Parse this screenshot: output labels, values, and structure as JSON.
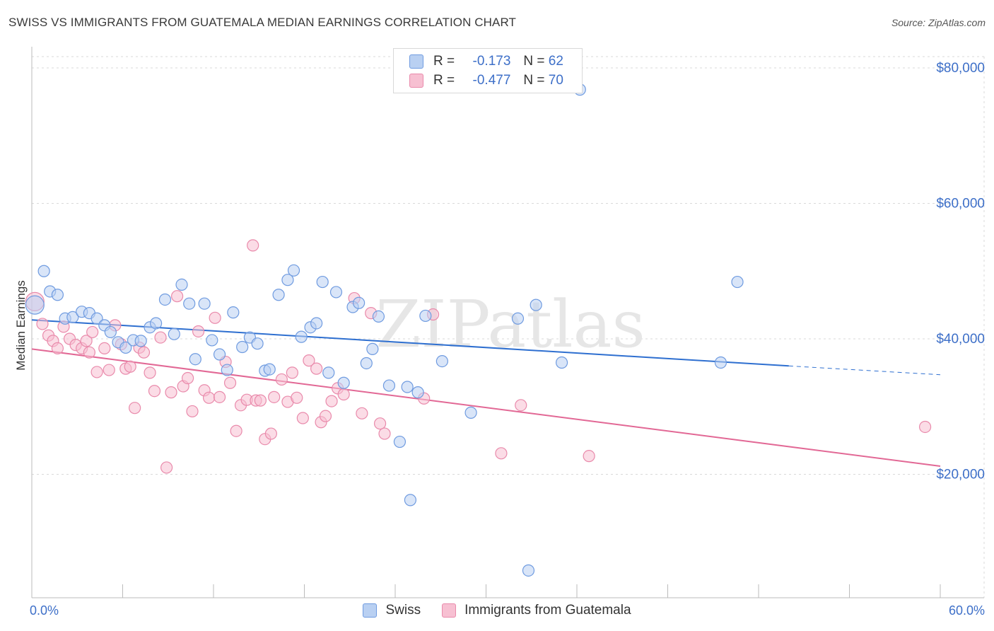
{
  "header": {
    "title": "SWISS VS IMMIGRANTS FROM GUATEMALA MEDIAN EARNINGS CORRELATION CHART",
    "source": "Source: ZipAtlas.com"
  },
  "legend": {
    "swiss": {
      "r_label": "R =",
      "r_value": "-0.173",
      "n_label": "N =",
      "n_value": "62"
    },
    "guatemala": {
      "r_label": "R =",
      "r_value": "-0.477",
      "n_label": "N =",
      "n_value": "70"
    }
  },
  "bottom_legend": {
    "swiss": "Swiss",
    "guatemala": "Immigrants from Guatemala"
  },
  "colors": {
    "swiss_fill": "#b9d0f2",
    "swiss_stroke": "#6f9be0",
    "swiss_line": "#2e6fd0",
    "guat_fill": "#f7c0d2",
    "guat_stroke": "#e98aab",
    "guat_line": "#e26895",
    "axis_label": "#3d6fc8",
    "grid": "#d9d9d9"
  },
  "chart_data": {
    "type": "scatter",
    "title": "SWISS VS IMMIGRANTS FROM GUATEMALA MEDIAN EARNINGS CORRELATION CHART",
    "xlabel": "",
    "ylabel": "Median Earnings",
    "xlim": [
      0,
      60
    ],
    "ylim": [
      0,
      80000
    ],
    "x_tick_labels": [
      "0.0%",
      "60.0%"
    ],
    "y_ticks": [
      20000,
      40000,
      60000,
      80000
    ],
    "y_tick_labels": [
      "$20,000",
      "$40,000",
      "$60,000",
      "$80,000"
    ],
    "grid": true,
    "watermark": "ZIPatlas",
    "series": [
      {
        "name": "Swiss",
        "r": -0.173,
        "n": 62,
        "trend": {
          "x0": 0,
          "y0": 42800,
          "x1": 50,
          "y1": 36000,
          "dash_x1": 60,
          "dash_y1": 34700
        },
        "points": [
          [
            0.2,
            45000
          ],
          [
            0.8,
            50000
          ],
          [
            1.2,
            47000
          ],
          [
            1.7,
            46500
          ],
          [
            2.2,
            43000
          ],
          [
            2.7,
            43200
          ],
          [
            3.3,
            44000
          ],
          [
            3.8,
            43800
          ],
          [
            4.3,
            43000
          ],
          [
            4.8,
            42000
          ],
          [
            5.2,
            41000
          ],
          [
            5.7,
            39500
          ],
          [
            6.2,
            38700
          ],
          [
            6.7,
            39800
          ],
          [
            7.2,
            39700
          ],
          [
            7.8,
            41700
          ],
          [
            8.2,
            42300
          ],
          [
            8.8,
            45800
          ],
          [
            9.4,
            40700
          ],
          [
            9.9,
            48000
          ],
          [
            10.4,
            45200
          ],
          [
            10.8,
            37000
          ],
          [
            11.4,
            45200
          ],
          [
            11.9,
            39800
          ],
          [
            12.4,
            37700
          ],
          [
            12.9,
            35400
          ],
          [
            13.3,
            43900
          ],
          [
            13.9,
            38800
          ],
          [
            14.4,
            40200
          ],
          [
            14.9,
            39300
          ],
          [
            15.4,
            35300
          ],
          [
            15.7,
            35500
          ],
          [
            16.3,
            46500
          ],
          [
            16.9,
            48700
          ],
          [
            17.3,
            50100
          ],
          [
            17.8,
            40300
          ],
          [
            18.4,
            41700
          ],
          [
            18.8,
            42300
          ],
          [
            19.2,
            48400
          ],
          [
            19.6,
            35000
          ],
          [
            20.1,
            46900
          ],
          [
            20.6,
            33500
          ],
          [
            21.2,
            44700
          ],
          [
            21.6,
            45300
          ],
          [
            22.1,
            36400
          ],
          [
            22.5,
            38500
          ],
          [
            22.9,
            43300
          ],
          [
            23.6,
            33100
          ],
          [
            24.3,
            24800
          ],
          [
            24.8,
            32900
          ],
          [
            25.0,
            16200
          ],
          [
            25.5,
            32100
          ],
          [
            26.0,
            43400
          ],
          [
            27.1,
            36700
          ],
          [
            29.0,
            29100
          ],
          [
            32.1,
            43000
          ],
          [
            32.8,
            5800
          ],
          [
            33.3,
            45000
          ],
          [
            35.0,
            36500
          ],
          [
            36.2,
            76800
          ],
          [
            45.5,
            36500
          ],
          [
            46.6,
            48400
          ]
        ]
      },
      {
        "name": "Immigrants from Guatemala",
        "r": -0.477,
        "n": 70,
        "trend": {
          "x0": 0,
          "y0": 38500,
          "x1": 60,
          "y1": 21200
        },
        "points": [
          [
            0.2,
            45500
          ],
          [
            0.7,
            42200
          ],
          [
            1.1,
            40500
          ],
          [
            1.4,
            39700
          ],
          [
            1.7,
            38600
          ],
          [
            2.1,
            41800
          ],
          [
            2.5,
            40000
          ],
          [
            2.9,
            39100
          ],
          [
            3.3,
            38600
          ],
          [
            3.6,
            39700
          ],
          [
            3.8,
            38000
          ],
          [
            4.0,
            41000
          ],
          [
            4.3,
            35100
          ],
          [
            4.8,
            38600
          ],
          [
            5.1,
            35400
          ],
          [
            5.5,
            42000
          ],
          [
            5.9,
            39200
          ],
          [
            6.2,
            35600
          ],
          [
            6.5,
            35900
          ],
          [
            6.8,
            29800
          ],
          [
            7.1,
            38700
          ],
          [
            7.4,
            38000
          ],
          [
            7.8,
            35000
          ],
          [
            8.1,
            32300
          ],
          [
            8.5,
            40200
          ],
          [
            8.9,
            21000
          ],
          [
            9.2,
            32100
          ],
          [
            9.6,
            46300
          ],
          [
            10.0,
            33000
          ],
          [
            10.3,
            34200
          ],
          [
            10.6,
            29300
          ],
          [
            11.0,
            41100
          ],
          [
            11.4,
            32400
          ],
          [
            11.7,
            31300
          ],
          [
            12.1,
            43100
          ],
          [
            12.4,
            31400
          ],
          [
            12.8,
            36600
          ],
          [
            13.1,
            33500
          ],
          [
            13.5,
            26400
          ],
          [
            13.8,
            30200
          ],
          [
            14.2,
            31000
          ],
          [
            14.6,
            53800
          ],
          [
            14.8,
            30900
          ],
          [
            15.1,
            30900
          ],
          [
            15.4,
            25200
          ],
          [
            15.8,
            26000
          ],
          [
            16.0,
            31400
          ],
          [
            16.5,
            34000
          ],
          [
            16.9,
            30700
          ],
          [
            17.2,
            35000
          ],
          [
            17.5,
            31300
          ],
          [
            17.9,
            28300
          ],
          [
            18.3,
            36800
          ],
          [
            18.8,
            35600
          ],
          [
            19.1,
            27700
          ],
          [
            19.4,
            28600
          ],
          [
            19.8,
            30800
          ],
          [
            20.2,
            32700
          ],
          [
            20.6,
            31800
          ],
          [
            21.3,
            46000
          ],
          [
            21.8,
            29000
          ],
          [
            22.4,
            43800
          ],
          [
            23.0,
            27500
          ],
          [
            23.3,
            26000
          ],
          [
            25.9,
            31200
          ],
          [
            26.5,
            43600
          ],
          [
            31.0,
            23100
          ],
          [
            32.3,
            30200
          ],
          [
            36.8,
            22700
          ],
          [
            59.0,
            27000
          ]
        ]
      }
    ]
  }
}
